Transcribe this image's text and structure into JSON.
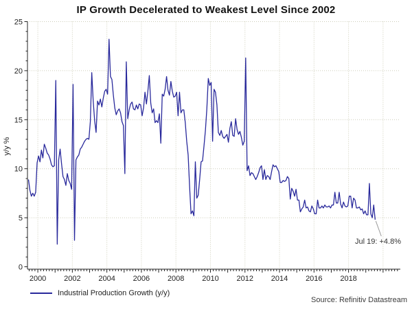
{
  "title": "IP Growth Decelerated to Weakest Level Since 2002",
  "colors": {
    "line": "#28289B",
    "grid": "#ccccb8",
    "axis": "#222222",
    "tick_text": "#222222",
    "annotation_pointer": "#999999"
  },
  "legend": {
    "label": "Industrial Production Growth (y/y)"
  },
  "source": "Source: Refinitiv Datastream",
  "annotation": {
    "text": "Jul 19: +4.8%",
    "date": "2019-07",
    "value": 4.8
  },
  "chart_data": {
    "type": "line",
    "title": "IP Growth Decelerated to Weakest Level Since 2002",
    "xlabel": "",
    "ylabel": "y/y %",
    "ylim": [
      0,
      25
    ],
    "yticks": [
      0,
      5,
      10,
      15,
      20,
      25
    ],
    "x_domain": [
      1999.4,
      2021.0
    ],
    "xtick_years": [
      2000,
      2002,
      2004,
      2006,
      2008,
      2010,
      2012,
      2014,
      2016,
      2018
    ],
    "grid": "dotted",
    "legend_position": "bottom-left",
    "annotation": {
      "text": "Jul 19: +4.8%",
      "x": 2019.54,
      "y": 4.8
    },
    "series": [
      {
        "name": "Industrial Production Growth (y/y)",
        "start": "1999-06",
        "frequency": "monthly",
        "values": [
          8.9,
          7.8,
          7.2,
          7.5,
          7.2,
          7.6,
          10.6,
          11.3,
          10.7,
          11.9,
          11.1,
          12.5,
          12.1,
          11.6,
          11.4,
          11.0,
          10.4,
          10.2,
          10.3,
          19.0,
          2.3,
          10.9,
          12.0,
          10.5,
          9.2,
          8.9,
          8.3,
          9.5,
          8.8,
          8.5,
          7.9,
          18.6,
          2.7,
          10.9,
          11.2,
          11.4,
          12.0,
          12.2,
          12.5,
          12.8,
          13.0,
          13.1,
          13.0,
          14.8,
          19.8,
          16.9,
          14.9,
          13.7,
          16.9,
          16.5,
          17.1,
          16.3,
          17.2,
          17.9,
          18.1,
          17.6,
          23.2,
          19.4,
          19.1,
          17.5,
          16.2,
          15.5,
          15.9,
          16.1,
          15.7,
          14.8,
          14.4,
          9.5,
          20.9,
          15.1,
          16.0,
          16.6,
          16.8,
          16.1,
          16.0,
          16.5,
          16.1,
          16.6,
          16.5,
          15.4,
          16.2,
          17.8,
          16.6,
          17.9,
          19.5,
          16.7,
          15.7,
          16.1,
          14.7,
          14.9,
          14.7,
          15.6,
          12.6,
          17.6,
          17.4,
          18.1,
          19.4,
          18.0,
          17.5,
          18.9,
          17.9,
          17.3,
          17.4,
          17.8,
          15.4,
          17.8,
          15.7,
          16.0,
          16.0,
          14.7,
          12.8,
          11.4,
          8.2,
          5.4,
          5.7,
          5.2,
          10.7,
          7.0,
          7.3,
          8.9,
          10.7,
          10.8,
          12.3,
          13.9,
          16.1,
          19.2,
          18.5,
          18.8,
          12.8,
          18.1,
          17.8,
          16.5,
          13.7,
          13.4,
          13.9,
          13.3,
          13.1,
          13.3,
          13.5,
          12.7,
          14.1,
          14.8,
          13.4,
          13.3,
          15.1,
          14.0,
          13.5,
          13.8,
          13.2,
          12.4,
          12.8,
          21.3,
          9.8,
          10.3,
          9.3,
          9.6,
          9.5,
          9.2,
          8.9,
          9.2,
          9.6,
          10.1,
          10.3,
          8.9,
          9.9,
          8.9,
          9.3,
          9.2,
          8.9,
          9.7,
          10.4,
          10.2,
          10.3,
          10.0,
          9.7,
          8.6,
          8.6,
          8.8,
          8.7,
          8.8,
          9.2,
          9.0,
          6.9,
          8.0,
          7.7,
          7.2,
          7.9,
          6.8,
          6.8,
          5.6,
          5.9,
          6.1,
          6.8,
          6.0,
          6.1,
          5.7,
          5.6,
          6.2,
          5.9,
          5.4,
          5.4,
          6.8,
          6.0,
          6.0,
          6.2,
          6.0,
          6.3,
          6.1,
          6.1,
          6.2,
          6.0,
          6.3,
          6.3,
          7.6,
          6.5,
          6.5,
          7.6,
          6.4,
          6.0,
          6.6,
          6.2,
          6.1,
          6.2,
          7.2,
          7.2,
          6.0,
          7.0,
          6.8,
          6.0,
          6.0,
          6.1,
          5.8,
          5.9,
          5.4,
          5.7,
          5.3,
          5.3,
          8.5,
          5.4,
          5.0,
          6.3,
          4.8
        ]
      }
    ],
    "source": "Source: Refinitiv Datastream"
  }
}
